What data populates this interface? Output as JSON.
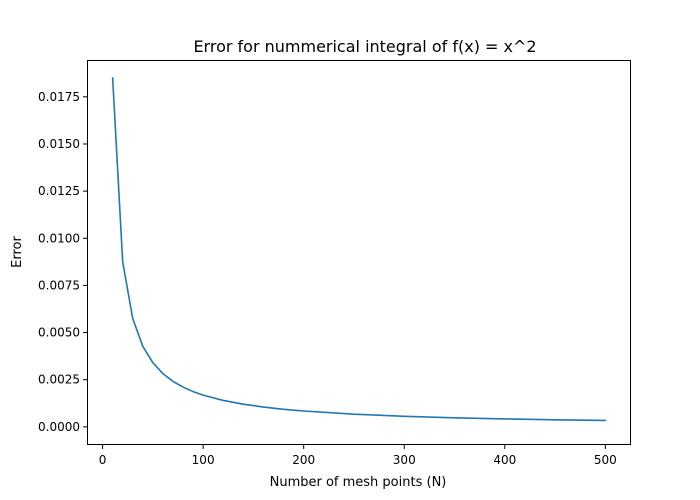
{
  "chart_data": {
    "type": "line",
    "title": "Error for nummerical integral of f(x) = x^2",
    "xlabel": "Number of mesh points (N)",
    "ylabel": "Error",
    "xlim": [
      -14.5,
      524.5
    ],
    "ylim": [
      -0.00091,
      0.0194
    ],
    "xticks": [
      0,
      100,
      200,
      300,
      400,
      500
    ],
    "xtick_labels": [
      "0",
      "100",
      "200",
      "300",
      "400",
      "500"
    ],
    "yticks": [
      0.0,
      0.0025,
      0.005,
      0.0075,
      0.01,
      0.0125,
      0.015,
      0.0175
    ],
    "ytick_labels": [
      "0.0000",
      "0.0025",
      "0.0050",
      "0.0075",
      "0.0100",
      "0.0125",
      "0.0150",
      "0.0175"
    ],
    "grid": false,
    "series": [
      {
        "color": "#1f77b4",
        "x": [
          10,
          20,
          30,
          40,
          50,
          60,
          70,
          80,
          90,
          100,
          120,
          140,
          160,
          180,
          200,
          250,
          300,
          350,
          400,
          450,
          500
        ],
        "y": [
          0.0185,
          0.00875,
          0.00574,
          0.00427,
          0.0034,
          0.00282,
          0.00241,
          0.00211,
          0.00187,
          0.00168,
          0.0014,
          0.0012,
          0.00105,
          0.00093,
          0.00084,
          0.00067,
          0.00056,
          0.00048,
          0.00042,
          0.00037,
          0.00034
        ]
      }
    ]
  }
}
